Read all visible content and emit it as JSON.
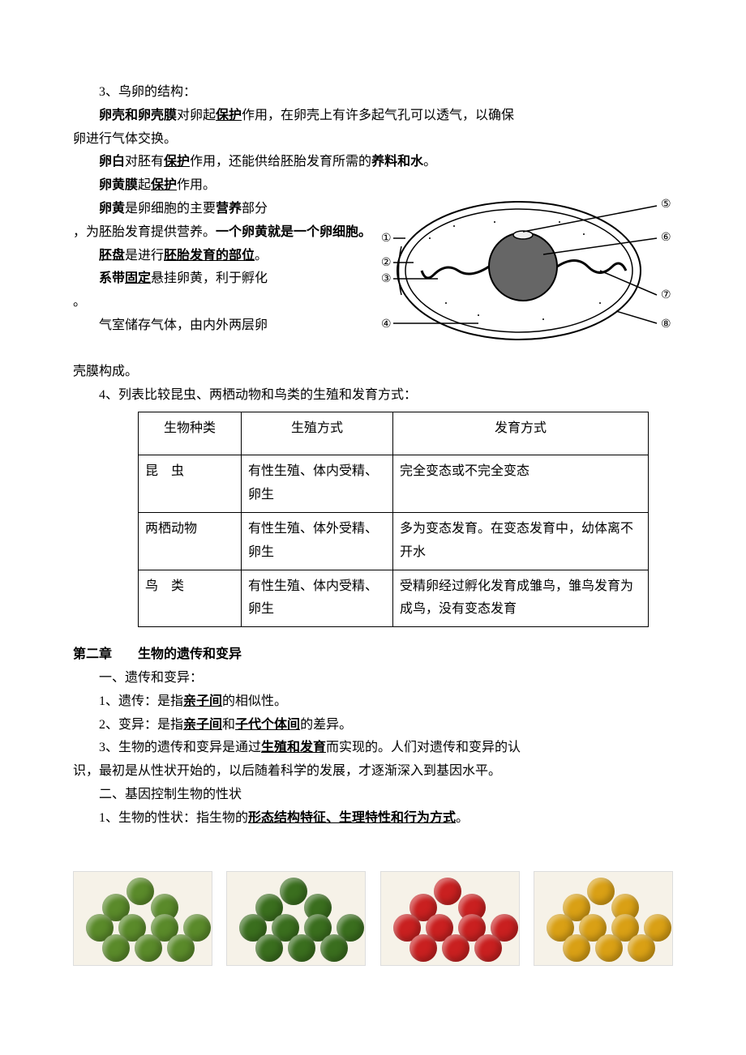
{
  "section3": {
    "heading": "3、鸟卵的结构：",
    "line1_pre": "卵壳和卵壳膜",
    "line1_mid1": "对卵起",
    "line1_protect": "保护",
    "line1_mid2": "作用，在卵壳上有许多起气孔可以透气，以确保",
    "line1_end": "卵进行气体交换。",
    "line2_pre": "卵白",
    "line2_mid1": "对胚有",
    "line2_protect": "保护",
    "line2_mid2": "作用，还能供给胚胎发育所需的",
    "line2_nutrient": "养料和水",
    "line2_end": "。",
    "line3_pre": "卵黄膜",
    "line3_mid": "起",
    "line3_protect": "保护",
    "line3_end": "作用。",
    "line4_pre": "卵黄",
    "line4_mid1": "是卵细胞的主要",
    "line4_nutrient": "营养",
    "line4_mid2": "部分",
    "line4_cont1": "，为胚胎发育提供营养。",
    "line4_bold": "一个卵黄就是一个卵细胞。",
    "line5_pre": "胚盘",
    "line5_mid": "是进行",
    "line5_u": "胚胎发育的部位",
    "line5_end": "。",
    "line6_pre": "系带",
    "line6_u": "固定",
    "line6_end": "悬挂卵黄，利于孵化",
    "line6_period": "。",
    "line7": "气室储存气体，由内外两层卵",
    "line7_end": "壳膜构成。"
  },
  "diagram": {
    "labels": [
      "①",
      "②",
      "③",
      "④",
      "⑤",
      "⑥",
      "⑦",
      "⑧"
    ]
  },
  "section4": {
    "heading": "4、列表比较昆虫、两栖动物和鸟类的生殖和发育方式：",
    "headers": [
      "生物种类",
      "生殖方式",
      "发育方式"
    ],
    "rows": [
      [
        "昆　虫",
        "有性生殖、体内受精、卵生",
        "完全变态或不完全变态"
      ],
      [
        "两栖动物",
        "有性生殖、体外受精、卵生",
        "多为变态发育。在变态发育中，幼体离不开水"
      ],
      [
        "鸟　类",
        "有性生殖、体内受精、卵生",
        "受精卵经过孵化发育成雏鸟，雏鸟发育为成鸟，没有变态发育"
      ]
    ]
  },
  "chapter2": {
    "title": "第二章　　生物的遗传和变异",
    "sub1": "一、遗传和变异：",
    "l1_pre": "1、遗传：是指",
    "l1_u": "亲子间",
    "l1_end": "的相似性。",
    "l2_pre": "2、变异：是指",
    "l2_u1": "亲子间",
    "l2_mid": "和",
    "l2_u2": "子代个体间",
    "l2_end": "的差异。",
    "l3_pre": "3、生物的遗传和变异是通过",
    "l3_u": "生殖和发育",
    "l3_mid": "而实现的。人们对遗传和变异的认",
    "l3_end": "识，最初是从性状开始的，以后随着科学的发展，才逐渐深入到基因水平。",
    "sub2": "二、基因控制生物的性状",
    "l4_pre": "1、生物的性状：指生物的",
    "l4_u": "形态结构特征、生理特性和行为方式",
    "l4_end": "。"
  },
  "photos": {
    "colors": [
      "#5a8a2a",
      "#3a6e1e",
      "#c92020",
      "#d9a015"
    ],
    "bg": "#f6f2e8"
  }
}
